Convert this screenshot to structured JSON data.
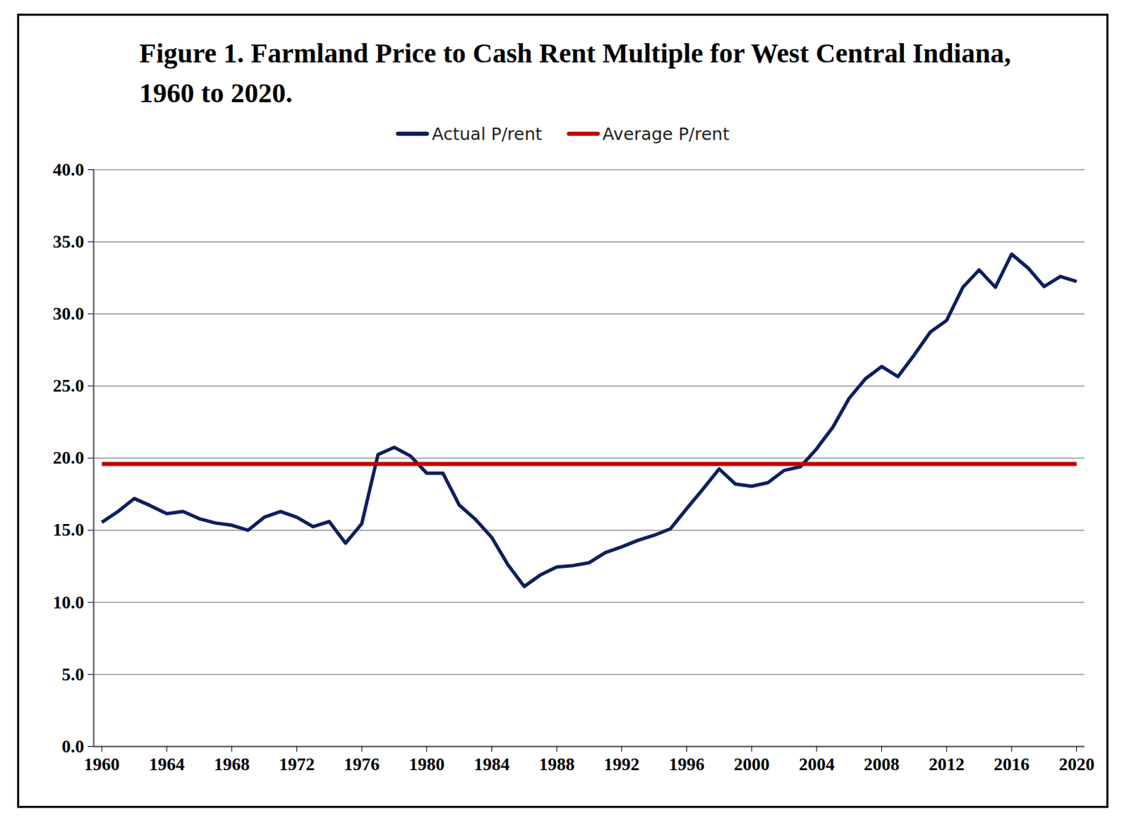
{
  "chart_data": {
    "type": "line",
    "title": "Figure 1.  Farmland Price to Cash Rent Multiple for West Central Indiana, 1960 to 2020.",
    "x": [
      1960,
      1961,
      1962,
      1963,
      1964,
      1965,
      1966,
      1967,
      1968,
      1969,
      1970,
      1971,
      1972,
      1973,
      1974,
      1975,
      1976,
      1977,
      1978,
      1979,
      1980,
      1981,
      1982,
      1983,
      1984,
      1985,
      1986,
      1987,
      1988,
      1989,
      1990,
      1991,
      1992,
      1993,
      1994,
      1995,
      1996,
      1997,
      1998,
      1999,
      2000,
      2001,
      2002,
      2003,
      2004,
      2005,
      2006,
      2007,
      2008,
      2009,
      2010,
      2011,
      2012,
      2013,
      2014,
      2015,
      2016,
      2017,
      2018,
      2019,
      2020
    ],
    "series": [
      {
        "name": "Actual P/rent",
        "color": "#0d1f5c",
        "values": [
          15.55,
          16.3,
          17.2,
          16.7,
          16.15,
          16.3,
          15.8,
          15.5,
          15.35,
          15.0,
          15.9,
          16.3,
          15.9,
          15.25,
          15.6,
          14.1,
          15.45,
          20.25,
          20.75,
          20.15,
          18.95,
          18.95,
          16.75,
          15.75,
          14.5,
          12.6,
          11.1,
          11.9,
          12.45,
          12.55,
          12.75,
          13.45,
          13.85,
          14.3,
          14.65,
          15.1,
          16.5,
          17.85,
          19.25,
          18.2,
          18.05,
          18.3,
          19.15,
          19.4,
          20.65,
          22.15,
          24.15,
          25.5,
          26.35,
          25.65,
          27.15,
          28.75,
          29.55,
          31.85,
          33.05,
          31.85,
          34.15,
          33.2,
          31.9,
          32.6,
          32.25
        ]
      },
      {
        "name": "Average P/rent",
        "color": "#c00000",
        "values": [
          19.6,
          19.6,
          19.6,
          19.6,
          19.6,
          19.6,
          19.6,
          19.6,
          19.6,
          19.6,
          19.6,
          19.6,
          19.6,
          19.6,
          19.6,
          19.6,
          19.6,
          19.6,
          19.6,
          19.6,
          19.6,
          19.6,
          19.6,
          19.6,
          19.6,
          19.6,
          19.6,
          19.6,
          19.6,
          19.6,
          19.6,
          19.6,
          19.6,
          19.6,
          19.6,
          19.6,
          19.6,
          19.6,
          19.6,
          19.6,
          19.6,
          19.6,
          19.6,
          19.6,
          19.6,
          19.6,
          19.6,
          19.6,
          19.6,
          19.6,
          19.6,
          19.6,
          19.6,
          19.6,
          19.6,
          19.6,
          19.6,
          19.6,
          19.6,
          19.6,
          19.6
        ]
      }
    ],
    "xlim": [
      1959.5,
      2020.5
    ],
    "xticks": [
      1960,
      1964,
      1968,
      1972,
      1976,
      1980,
      1984,
      1988,
      1992,
      1996,
      2000,
      2004,
      2008,
      2012,
      2016,
      2020
    ],
    "ylim": [
      0,
      40
    ],
    "yticks": [
      {
        "value": 0,
        "label": "0.0"
      },
      {
        "value": 5,
        "label": "5.0"
      },
      {
        "value": 10,
        "label": "10.0"
      },
      {
        "value": 15,
        "label": "15.0"
      },
      {
        "value": 20,
        "label": "20.0"
      },
      {
        "value": 25,
        "label": "25.0"
      },
      {
        "value": 30,
        "label": "30.0"
      },
      {
        "value": 35,
        "label": "35.0"
      },
      {
        "value": 40,
        "label": "40.0"
      }
    ],
    "grid": true,
    "legend": "top"
  }
}
